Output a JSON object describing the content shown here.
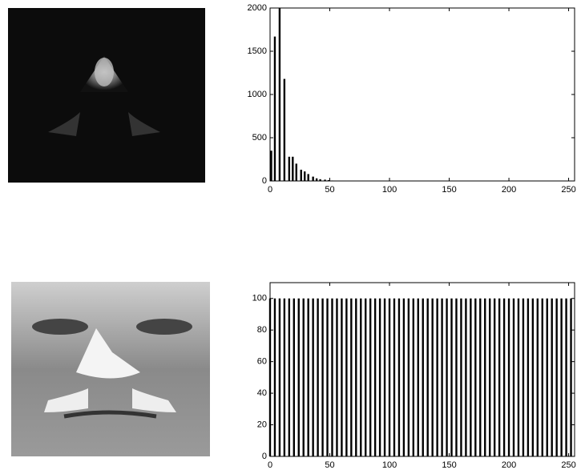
{
  "chart_data": [
    {
      "type": "bar",
      "color": "#000000",
      "x": [
        1,
        4,
        8,
        12,
        16,
        19,
        22,
        26,
        29,
        32,
        36,
        39,
        42,
        46,
        49,
        52
      ],
      "values": [
        350,
        1670,
        2000,
        1180,
        280,
        280,
        200,
        130,
        110,
        80,
        50,
        30,
        20,
        15,
        10,
        5
      ],
      "xlim": [
        0,
        255
      ],
      "xticks": [
        0,
        50,
        100,
        150,
        200,
        250
      ],
      "ylim": [
        0,
        2000
      ],
      "yticks": [
        0,
        500,
        1000,
        1500,
        2000
      ]
    },
    {
      "type": "bar",
      "color": "#000000",
      "x": [
        0,
        4,
        8,
        12,
        16,
        20,
        24,
        28,
        32,
        36,
        40,
        44,
        48,
        52,
        56,
        60,
        64,
        68,
        72,
        76,
        80,
        84,
        88,
        92,
        96,
        100,
        104,
        108,
        112,
        116,
        120,
        124,
        128,
        132,
        136,
        140,
        144,
        148,
        152,
        156,
        160,
        164,
        168,
        172,
        176,
        180,
        184,
        188,
        192,
        196,
        200,
        204,
        208,
        212,
        216,
        220,
        224,
        228,
        232,
        236,
        240,
        244,
        248,
        252
      ],
      "values": [
        100,
        100,
        100,
        100,
        100,
        100,
        100,
        100,
        100,
        100,
        100,
        100,
        100,
        100,
        100,
        100,
        100,
        100,
        100,
        100,
        100,
        100,
        100,
        100,
        100,
        100,
        100,
        100,
        100,
        100,
        100,
        100,
        100,
        100,
        100,
        100,
        100,
        100,
        100,
        100,
        100,
        100,
        100,
        100,
        100,
        100,
        100,
        100,
        100,
        100,
        100,
        100,
        100,
        100,
        100,
        100,
        100,
        100,
        100,
        100,
        100,
        100,
        100,
        100
      ],
      "xlim": [
        0,
        255
      ],
      "xticks": [
        0,
        50,
        100,
        150,
        200,
        250
      ],
      "ylim": [
        0,
        110
      ],
      "yticks": [
        0,
        20,
        40,
        60,
        80,
        100
      ]
    }
  ]
}
